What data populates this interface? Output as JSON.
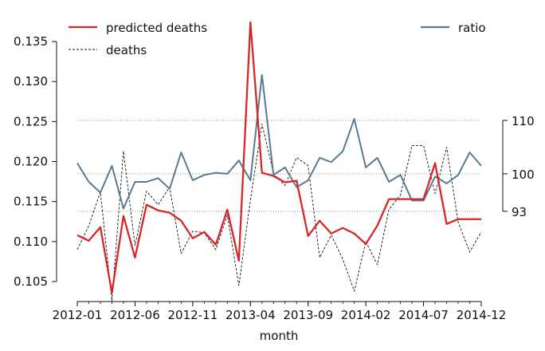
{
  "chart_data": {
    "type": "line",
    "xlabel": "month",
    "x_tick_labels": [
      "2012-01",
      "2012-06",
      "2012-11",
      "2013-04",
      "2013-09",
      "2014-02",
      "2014-07",
      "2014-12"
    ],
    "x": [
      "2012-01",
      "2012-02",
      "2012-03",
      "2012-04",
      "2012-05",
      "2012-06",
      "2012-07",
      "2012-08",
      "2012-09",
      "2012-10",
      "2012-11",
      "2012-12",
      "2013-01",
      "2013-02",
      "2013-03",
      "2013-04",
      "2013-05",
      "2013-06",
      "2013-07",
      "2013-08",
      "2013-09",
      "2013-10",
      "2013-11",
      "2013-12",
      "2014-01",
      "2014-02",
      "2014-03",
      "2014-04",
      "2014-05",
      "2014-06",
      "2014-07",
      "2014-08",
      "2014-09",
      "2014-10",
      "2014-11",
      "2014-12"
    ],
    "left_axis": {
      "ylim": [
        0.1033,
        0.1375
      ],
      "ticks": [
        "0.105",
        "0.110",
        "0.115",
        "0.120",
        "0.125",
        "0.130",
        "0.135"
      ],
      "tick_values": [
        0.105,
        0.11,
        0.115,
        0.12,
        0.125,
        0.13,
        0.135
      ]
    },
    "right_axis": {
      "ylim": [
        77.3,
        128.5
      ],
      "ticks": [
        "93",
        "100",
        "110"
      ],
      "tick_values": [
        93,
        100,
        110
      ]
    },
    "grid_lines_right": [
      93,
      100,
      110
    ],
    "legend": {
      "left_placement": "top-left",
      "right_placement": "top-right"
    },
    "series": [
      {
        "name": "predicted deaths",
        "axis": "left",
        "color": "#d62728",
        "style": "solid",
        "values": [
          0.1108,
          0.1101,
          0.1118,
          0.1036,
          0.1132,
          0.108,
          0.1146,
          0.1139,
          0.1136,
          0.1126,
          0.1104,
          0.1112,
          0.1096,
          0.114,
          0.1076,
          0.1374,
          0.1186,
          0.1182,
          0.1174,
          0.1176,
          0.1107,
          0.1126,
          0.111,
          0.1117,
          0.111,
          0.1097,
          0.112,
          0.1153,
          0.1153,
          0.1153,
          0.1153,
          0.1198,
          0.1122,
          0.1128,
          0.1128,
          0.1128
        ]
      },
      {
        "name": "deaths",
        "axis": "left",
        "color": "#111111",
        "style": "dashed",
        "values": [
          0.109,
          0.112,
          0.1162,
          0.1026,
          0.1213,
          0.1095,
          0.1163,
          0.1146,
          0.1168,
          0.1085,
          0.1113,
          0.1111,
          0.109,
          0.1133,
          0.1045,
          0.1152,
          0.1247,
          0.1185,
          0.117,
          0.1205,
          0.1195,
          0.108,
          0.1108,
          0.1078,
          0.1038,
          0.11,
          0.1071,
          0.114,
          0.1158,
          0.122,
          0.122,
          0.116,
          0.1218,
          0.1124,
          0.1087,
          0.1112
        ]
      },
      {
        "name": "ratio",
        "axis": "right",
        "color": "#597a91",
        "style": "solid",
        "values": [
          102,
          98.5,
          96.5,
          101.5,
          93.5,
          98.5,
          98.5,
          99.2,
          97.2,
          104,
          98.8,
          99.8,
          100.2,
          100,
          102.5,
          98.8,
          118.5,
          99.8,
          101.2,
          97.5,
          98.8,
          103,
          102.2,
          104.2,
          110.3,
          101.2,
          103,
          98.5,
          99.8,
          95,
          95,
          99.5,
          98.2,
          99.8,
          104,
          101.5
        ]
      }
    ]
  }
}
